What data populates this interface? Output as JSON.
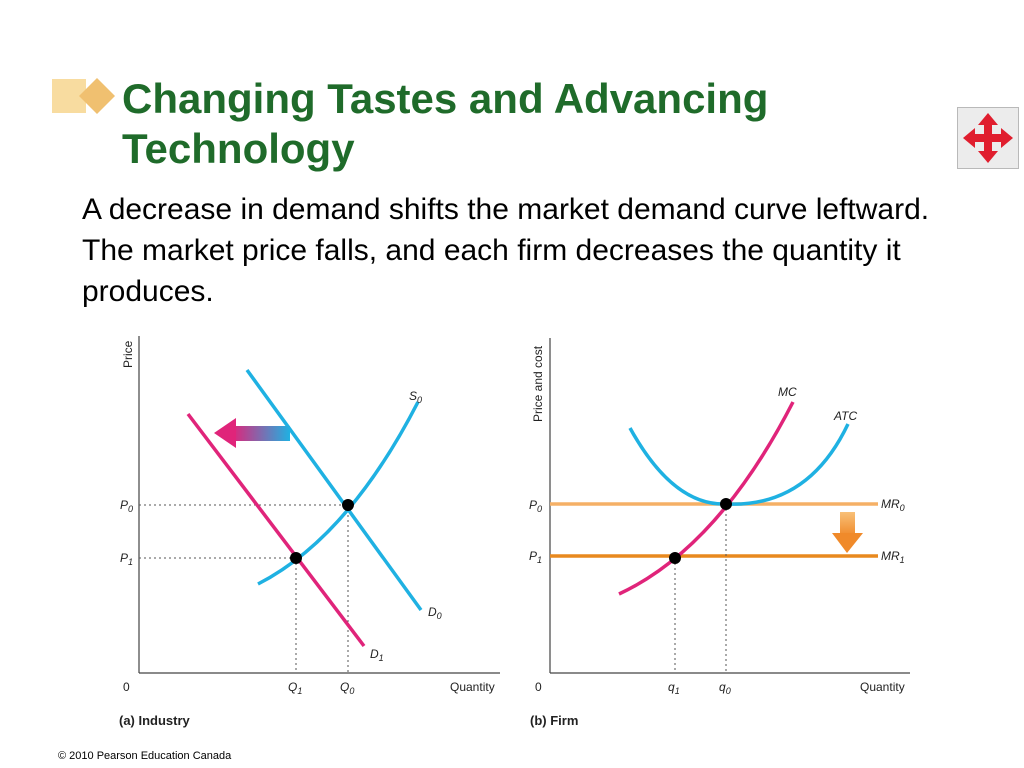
{
  "slide": {
    "title": "Changing Tastes and Advancing Technology",
    "body": "A decrease in demand shifts the market demand curve leftward. The market price falls, and each firm decreases the quantity it produces.",
    "footer": "© 2010 Pearson Education Canada",
    "nav_icon": "four-arrows-move-icon"
  },
  "colors": {
    "title": "#1f6b2a",
    "supply_curve": "#1fb1e2",
    "demand_new": "#e0247a",
    "marginal_revenue_initial": "#f5b066",
    "marginal_revenue_new": "#e8891e",
    "shift_arrow_left": "#e0247a",
    "shift_arrow_down": "#f08a2a"
  },
  "chart_data": [
    {
      "type": "line",
      "panel_label": "(a) Industry",
      "ylabel": "Price",
      "xlabel": "Quantity",
      "origin_label": "0",
      "y_ticks": [
        {
          "label": "P",
          "sub": "0",
          "value": 2
        },
        {
          "label": "P",
          "sub": "1",
          "value": 1
        }
      ],
      "x_ticks": [
        {
          "label": "Q",
          "sub": "1",
          "value": 1
        },
        {
          "label": "Q",
          "sub": "0",
          "value": 2
        }
      ],
      "curves": [
        {
          "label": "S",
          "sub": "0",
          "type": "supply"
        },
        {
          "label": "D",
          "sub": "0",
          "type": "demand"
        },
        {
          "label": "D",
          "sub": "1",
          "type": "demand"
        }
      ],
      "equilibria": [
        {
          "x": "Q0",
          "y": "P0"
        },
        {
          "x": "Q1",
          "y": "P1"
        }
      ],
      "shift": "leftward"
    },
    {
      "type": "line",
      "panel_label": "(b) Firm",
      "ylabel": "Price and cost",
      "xlabel": "Quantity",
      "origin_label": "0",
      "y_ticks": [
        {
          "label": "P",
          "sub": "0",
          "value": 2
        },
        {
          "label": "P",
          "sub": "1",
          "value": 1
        }
      ],
      "x_ticks": [
        {
          "label": "q",
          "sub": "1",
          "value": 1
        },
        {
          "label": "q",
          "sub": "0",
          "value": 2
        }
      ],
      "curves": [
        {
          "label": "MC",
          "type": "marginal_cost"
        },
        {
          "label": "ATC",
          "type": "average_total_cost"
        },
        {
          "label": "MR",
          "sub": "0",
          "type": "marginal_revenue",
          "price": "P0"
        },
        {
          "label": "MR",
          "sub": "1",
          "type": "marginal_revenue",
          "price": "P1"
        }
      ],
      "equilibria": [
        {
          "x": "q0",
          "y": "P0"
        },
        {
          "x": "q1",
          "y": "P1"
        }
      ],
      "shift": "downward"
    }
  ]
}
